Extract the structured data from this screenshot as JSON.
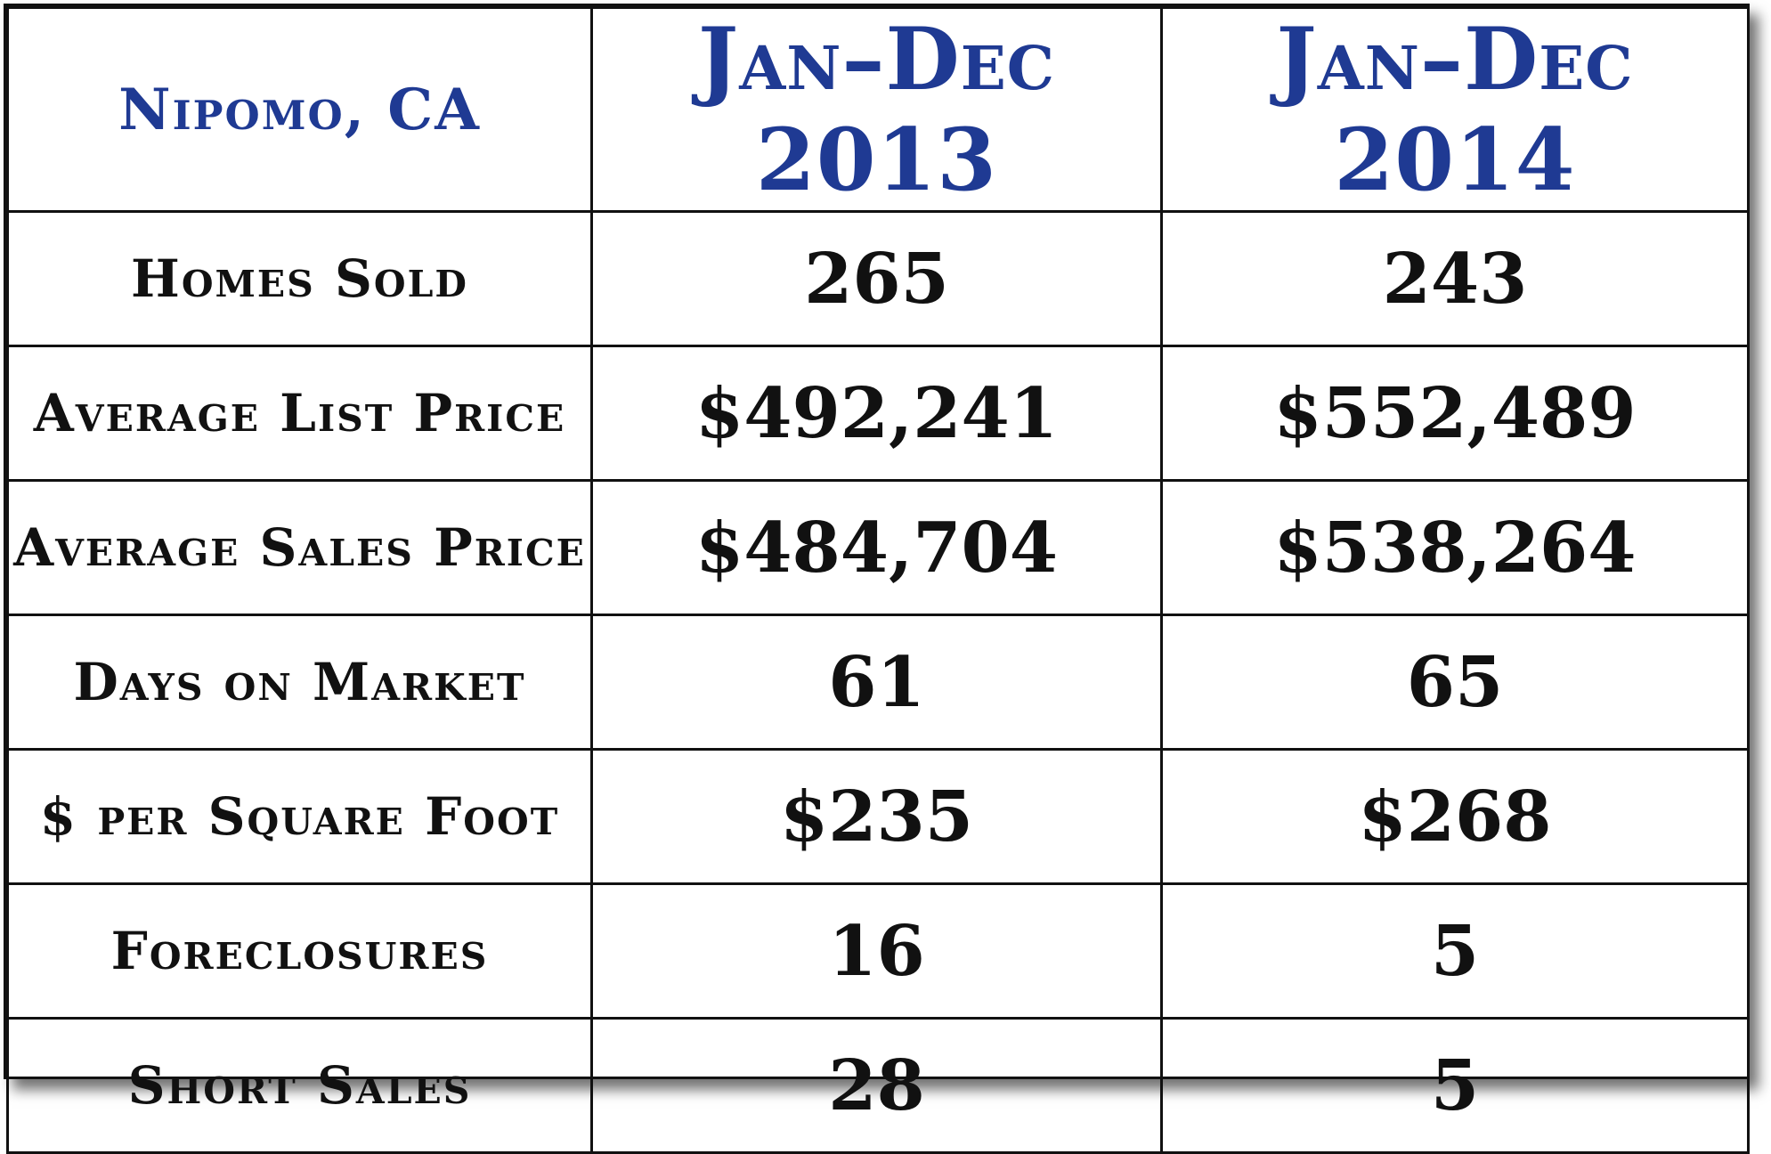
{
  "table": {
    "header": {
      "location": "Nipomo, CA",
      "period_1": "Jan–Dec 2013",
      "period_2": "Jan–Dec 2014"
    },
    "rows": [
      {
        "label": "Homes Sold",
        "v2013": "265",
        "v2014": "243"
      },
      {
        "label": "Average List Price",
        "v2013": "$492,241",
        "v2014": "$552,489"
      },
      {
        "label": "Average Sales Price",
        "v2013": "$484,704",
        "v2014": "$538,264"
      },
      {
        "label": "Days on Market",
        "v2013": "61",
        "v2014": "65"
      },
      {
        "label": "$ per Square Foot",
        "v2013": "$235",
        "v2014": "$268"
      },
      {
        "label": "Foreclosures",
        "v2013": "16",
        "v2014": "5"
      },
      {
        "label": "Short Sales",
        "v2013": "28",
        "v2014": "5"
      }
    ]
  },
  "colors": {
    "header_text": "#1f3a93",
    "body_text": "#111111",
    "border": "#111111"
  }
}
